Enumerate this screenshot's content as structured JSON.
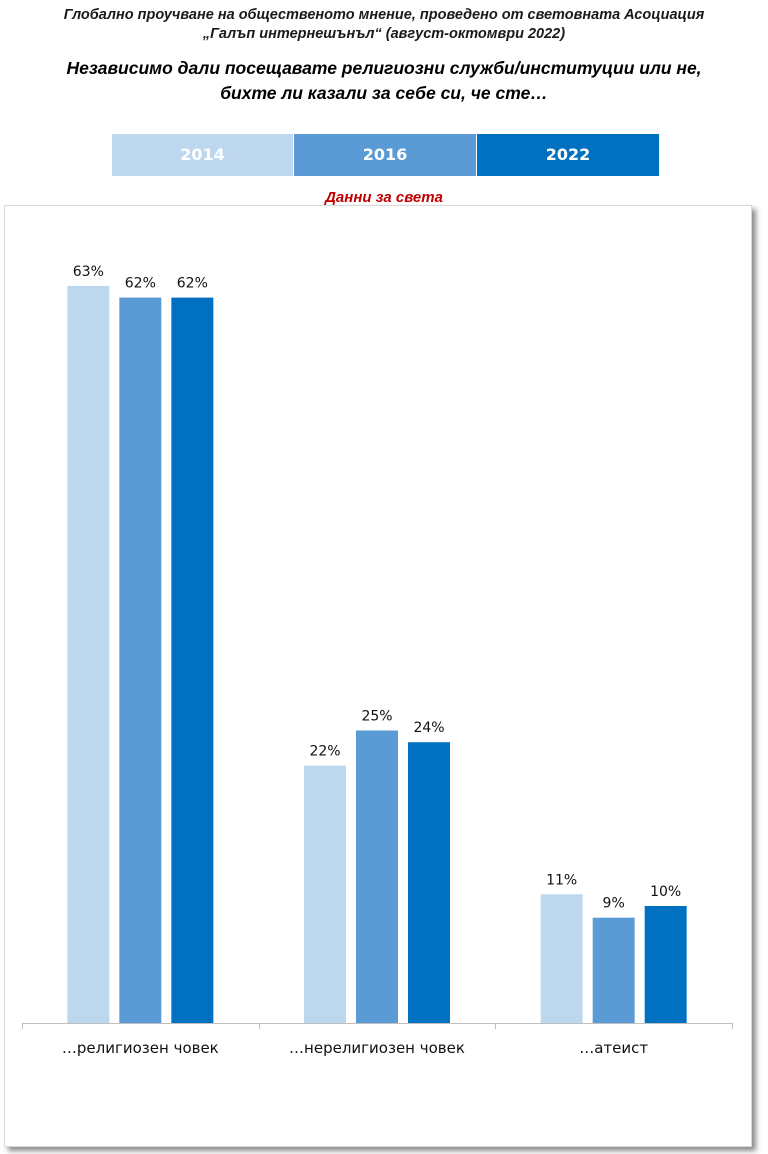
{
  "header": {
    "line1": "Глобално проучване на общественото мнение, проведено от световната Асоциация",
    "line2": "„Галъп интернешънъл“ (август-октомври 2022)"
  },
  "question": {
    "line1": "Независимо дали посещавате религиозни служби/институции или не,",
    "line2": "бихте ли казали за себе си, че сте…"
  },
  "legend": [
    {
      "label": "2014",
      "color": "#bdd7ee"
    },
    {
      "label": "2016",
      "color": "#5b9bd5"
    },
    {
      "label": "2022",
      "color": "#0070c0"
    }
  ],
  "subtitle": "Данни за света",
  "chart_data": {
    "type": "bar",
    "categories": [
      "…религиозен човек",
      "…нерелигиозен човек",
      "…атеист"
    ],
    "series": [
      {
        "name": "2014",
        "color": "#bdd7ee",
        "values": [
          63,
          22,
          11
        ],
        "labels": [
          "63%",
          "22%",
          "11%"
        ]
      },
      {
        "name": "2016",
        "color": "#5b9bd5",
        "values": [
          62,
          25,
          9
        ],
        "labels": [
          "62%",
          "25%",
          "9%"
        ]
      },
      {
        "name": "2022",
        "color": "#0070c0",
        "values": [
          62,
          24,
          10
        ],
        "labels": [
          "62%",
          "24%",
          "10%"
        ]
      }
    ],
    "ylim": [
      0,
      70
    ],
    "value_labels": true,
    "grid": false
  }
}
